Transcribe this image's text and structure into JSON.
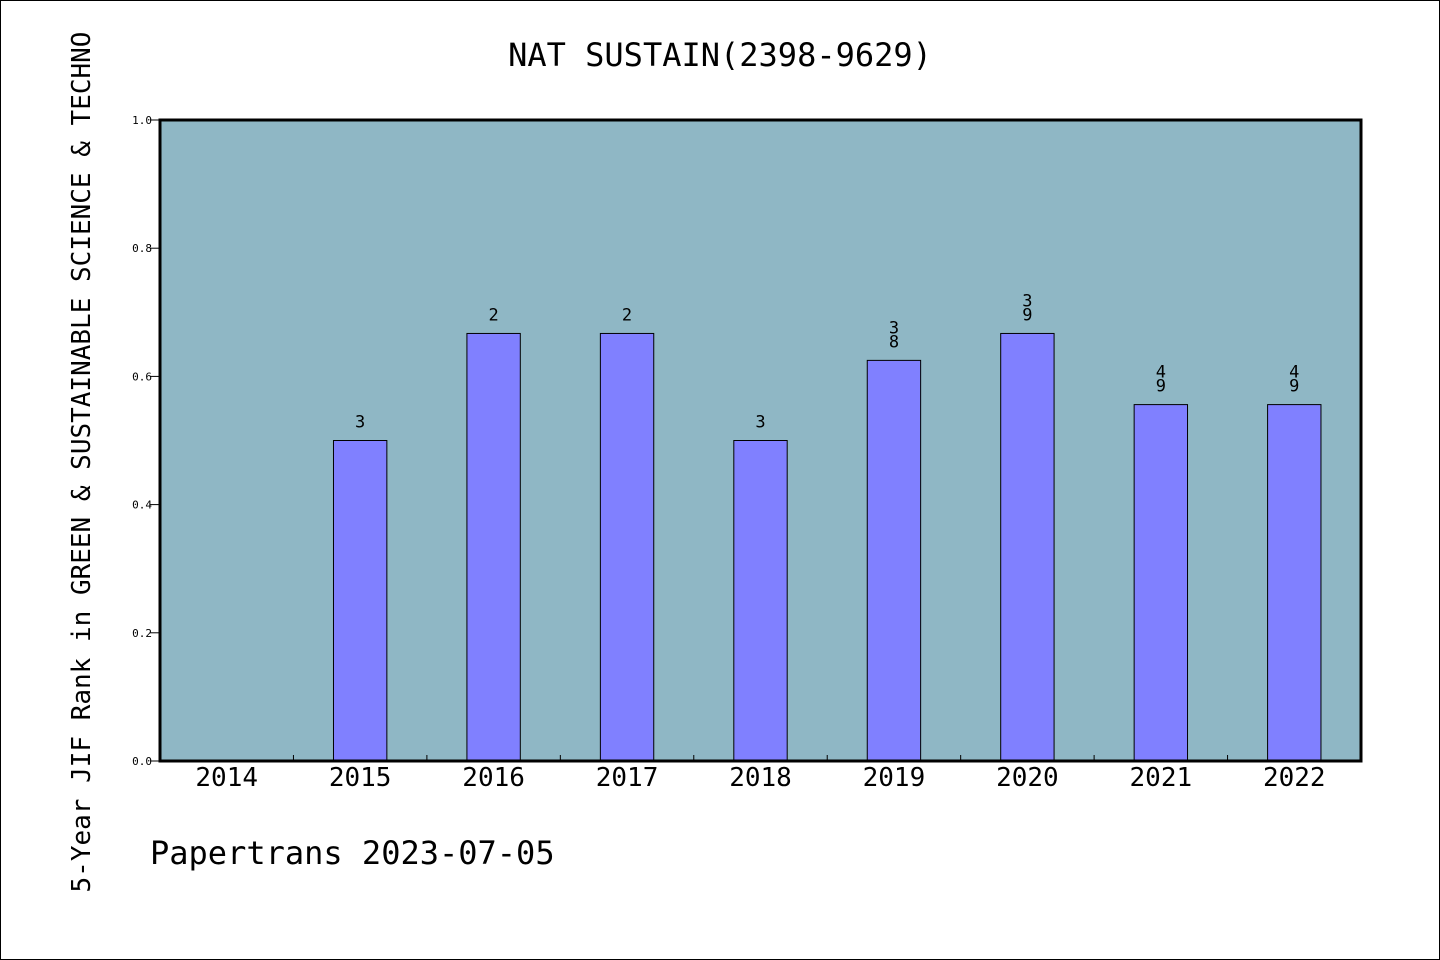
{
  "chart_data": {
    "type": "bar",
    "title": "NAT SUSTAIN(2398-9629)",
    "ylabel": "5-Year JIF Rank in GREEN & SUSTAINABLE SCIENCE & TECHNO",
    "xlabel": "",
    "footer": "Papertrans 2023-07-05",
    "categories": [
      "2014",
      "2015",
      "2016",
      "2017",
      "2018",
      "2019",
      "2020",
      "2021",
      "2022"
    ],
    "values": [
      null,
      0.5,
      0.667,
      0.667,
      0.5,
      0.625,
      0.667,
      0.556,
      0.556
    ],
    "data_labels": [
      "",
      "3",
      "2",
      "2",
      "3",
      "38",
      "39",
      "49",
      "49"
    ],
    "ylim": [
      0,
      1.0
    ],
    "yticks": [
      "0.0",
      "0.2",
      "0.4",
      "0.6",
      "0.8",
      "1.0"
    ],
    "grid": false,
    "legend": "none",
    "colors": {
      "plot_background": "#8fb7c5",
      "bar_fill": "#8080ff",
      "bar_edge": "#000000"
    }
  }
}
